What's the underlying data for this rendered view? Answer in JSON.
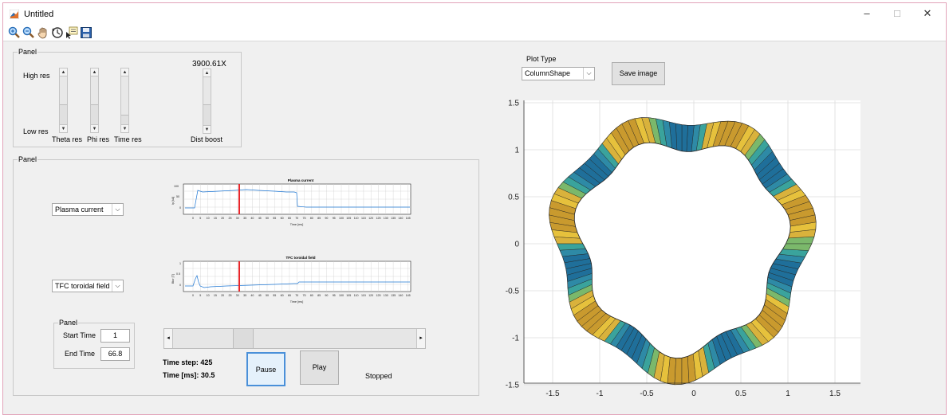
{
  "window": {
    "title": "Untitled",
    "controls": [
      "–",
      "□",
      "✕"
    ]
  },
  "toolbar": {
    "icons": [
      "zoom-in-icon",
      "zoom-out-icon",
      "pan-icon",
      "rotate-icon",
      "data-cursor-icon",
      "save-icon"
    ]
  },
  "top_panel": {
    "title": "Panel",
    "high_res": "High res",
    "low_res": "Low res",
    "theta_label": "Theta res",
    "phi_label": "Phi res",
    "time_label": "Time res",
    "boost_value": "3900.61X",
    "boost_label": "Dist boost"
  },
  "main_panel": {
    "title": "Panel",
    "dropdown1": "Plasma current",
    "dropdown2": "TFC toroidal field",
    "chart1_title": "Plasma current",
    "chart1_ylabel": "Ip [kA]",
    "chart1_xlabel": "Time [ms]",
    "chart2_title": "TFC toroidal field",
    "chart2_ylabel": "Btor [T]",
    "chart2_xlabel": "Time [ms]",
    "ticks_x": [
      "0",
      "5",
      "10",
      "15",
      "20",
      "25",
      "30",
      "35",
      "40",
      "45",
      "50",
      "55",
      "60",
      "65",
      "70",
      "75",
      "80",
      "85",
      "90",
      "95",
      "100",
      "105",
      "110",
      "115",
      "120",
      "125",
      "130",
      "135",
      "140",
      "145"
    ],
    "chart1_yticks": [
      "100",
      "50",
      "0"
    ],
    "chart2_yticks": [
      "1",
      "0.5",
      "0"
    ],
    "time_panel_title": "Panel",
    "start_time_label": "Start Time",
    "start_time_value": "1",
    "end_time_label": "End Time",
    "end_time_value": "66.8",
    "time_step": "Time step: 425",
    "time_ms": "Time [ms]: 30.5",
    "pause_label": "Pause",
    "play_label": "Play",
    "status": "Stopped"
  },
  "right": {
    "plot_type_label": "Plot Type",
    "plot_type_value": "ColumnShape",
    "save_label": "Save image",
    "x_ticks": [
      "-1.5",
      "-1",
      "-0.5",
      "0",
      "0.5",
      "1",
      "1.5"
    ],
    "y_ticks": [
      "1.5",
      "1",
      "0.5",
      "0",
      "-0.5",
      "-1",
      "-1.5"
    ]
  },
  "colors": {
    "accent_red": "#e8262a",
    "line_blue": "#1f77d4",
    "surface_yellow": "#e6c13c",
    "surface_teal": "#2e8aa6"
  }
}
